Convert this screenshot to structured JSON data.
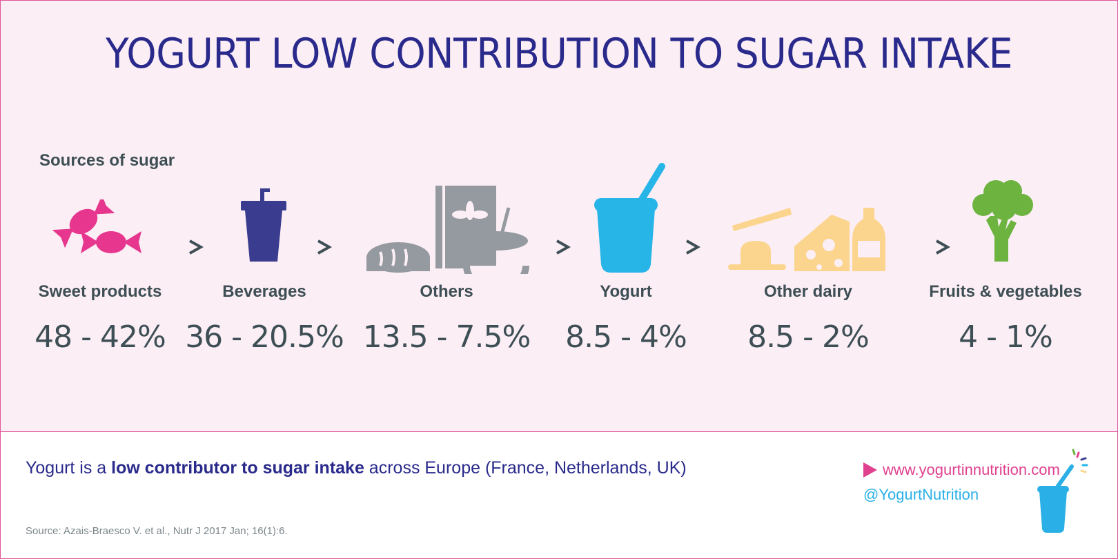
{
  "title": "YOGURT LOW CONTRIBUTION TO SUGAR INTAKE",
  "sources_label": "Sources of sugar",
  "separator": ">",
  "categories": [
    {
      "label": "Sweet products",
      "value": "48 - 42%",
      "icon": "candy-icon",
      "color": "#e6368e"
    },
    {
      "label": "Beverages",
      "value": "36 - 20.5%",
      "icon": "drink-cup-icon",
      "color": "#3a3d8f"
    },
    {
      "label": "Others",
      "value": "13.5 - 7.5%",
      "icon": "bread-cereal-icon",
      "color": "#959aa0"
    },
    {
      "label": "Yogurt",
      "value": "8.5 - 4%",
      "icon": "yogurt-cup-icon",
      "color": "#27b5e8"
    },
    {
      "label": "Other dairy",
      "value": "8.5 - 2%",
      "icon": "dairy-icon",
      "color": "#fbd58e"
    },
    {
      "label": "Fruits & vegetables",
      "value": "4 - 1%",
      "icon": "broccoli-icon",
      "color": "#6cb33f"
    }
  ],
  "footer": {
    "statement_pre": "Yogurt is a ",
    "statement_bold": "low contributor to sugar intake",
    "statement_post": " across Europe (France, Netherlands, UK)",
    "source": "Source: Azais-Braesco V. et al., Nutr J 2017 Jan; 16(1):6.",
    "website": "www.yogurtinnutrition.com",
    "social": "@YogurtNutrition"
  },
  "colors": {
    "background": "#fceef5",
    "title": "#2a2a8c",
    "text": "#3d4f55",
    "accent_pink": "#e0418f",
    "accent_blue": "#2ab0e6"
  }
}
